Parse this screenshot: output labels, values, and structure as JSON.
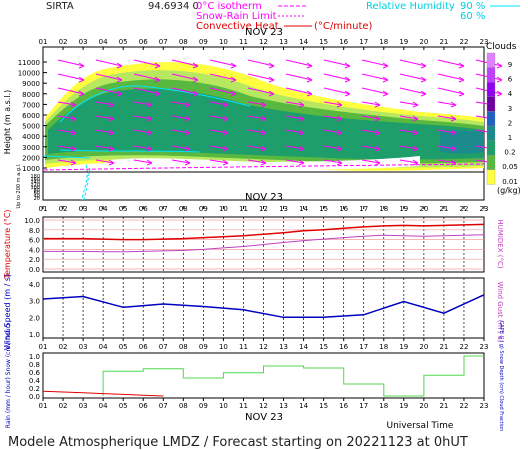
{
  "header": {
    "site": "SIRTA",
    "coord_line": "94.6934 0",
    "legend": {
      "isotherm": "0°C isotherm",
      "snow_rain": "Snow-Rain Limit",
      "convective": "Convective Heat.",
      "convective_unit": "(°C/minute)",
      "rh_label": "Relative Humidity",
      "rh_90": "90 %",
      "rh_60": "60 %"
    }
  },
  "hours": [
    "01",
    "02",
    "03",
    "04",
    "05",
    "06",
    "07",
    "08",
    "09",
    "10",
    "11",
    "12",
    "13",
    "14",
    "15",
    "16",
    "17",
    "18",
    "19",
    "20",
    "21",
    "22",
    "23"
  ],
  "date_label": "NOV 23",
  "footer": {
    "universal_time": "Universal Time",
    "model_line": "Modele Atmospherique LMDZ / Forecast starting on 20221123 at 0hUT"
  },
  "colors": {
    "magenta": "#ff00ff",
    "cyan": "#00e5ff",
    "red": "#e00000",
    "blue": "#0000c0",
    "green": "#50d850",
    "violet": "#c040c0",
    "cloud_001": "#ffff40",
    "cloud_005": "#b8e860",
    "cloud_02": "#58b840",
    "cloud_1": "#1e9e6a",
    "cloud_2": "#1a8a8c"
  },
  "chart_data": [
    {
      "type": "heatmap",
      "name": "clouds",
      "ylabel": "Height (m a.s.l.)",
      "ylabel_low": "Up to 200 m a.g.l.",
      "yticks_upper": [
        "11000",
        "10000",
        "9000",
        "8000",
        "7000",
        "6000",
        "5000",
        "4000",
        "3000",
        "2000",
        "1000"
      ],
      "yticks_lower": [
        "180",
        "160",
        "140",
        "120",
        "100",
        "80",
        "60",
        "40",
        "20"
      ],
      "legend": {
        "title": "Clouds",
        "unit": "(g/kg)",
        "levels": [
          "9",
          "6",
          "4",
          "3",
          "2",
          "1",
          "0.2",
          "0.05",
          "0.01"
        ],
        "colors": [
          "#e080ff",
          "#c040ff",
          "#9000f0",
          "#7000a0",
          "#2060c0",
          "#1a8a8c",
          "#1e9e6a",
          "#58b840",
          "#ffff40"
        ]
      }
    },
    {
      "type": "line",
      "name": "temperature",
      "ylabel": "Temperature (°C)",
      "ylabel_right": "HUMIDEX (°C)",
      "yticks": [
        "10.0",
        "8.0",
        "6.0",
        "4.0",
        "2.0",
        "0.0"
      ],
      "ylim": [
        0,
        10
      ],
      "x": [
        1,
        2,
        3,
        4,
        5,
        6,
        7,
        8,
        9,
        10,
        11,
        12,
        13,
        14,
        15,
        16,
        17,
        18,
        19,
        20,
        21,
        22,
        23
      ],
      "series": [
        {
          "values": [
            6.2,
            6.2,
            6.2,
            6.1,
            6.0,
            6.0,
            6.1,
            6.2,
            6.4,
            6.6,
            6.8,
            7.1,
            7.4,
            7.8,
            8.0,
            8.3,
            8.6,
            8.8,
            8.9,
            8.8,
            8.9,
            9.0,
            9.1
          ]
        },
        {
          "values": [
            3.6,
            3.6,
            3.6,
            3.5,
            3.5,
            3.6,
            3.7,
            3.8,
            4.0,
            4.3,
            4.6,
            5.0,
            5.4,
            5.8,
            6.1,
            6.4,
            6.7,
            6.9,
            6.8,
            6.7,
            6.8,
            6.9,
            7.0
          ]
        }
      ]
    },
    {
      "type": "line",
      "name": "wind",
      "ylabel": "Wind Speed (m / s)",
      "ylabel_right": "Wind Gust (m / s)",
      "yticks": [
        "4.0",
        "3.0",
        "2.0",
        "1.0"
      ],
      "ylim": [
        1,
        4
      ],
      "x": [
        1,
        3,
        5,
        7,
        9,
        11,
        13,
        15,
        17,
        19,
        21,
        23
      ],
      "series": [
        {
          "values": [
            3.1,
            3.25,
            2.6,
            2.8,
            2.65,
            2.45,
            2.0,
            2.0,
            2.15,
            2.95,
            2.25,
            3.35
          ]
        }
      ]
    },
    {
      "type": "bar",
      "name": "precipitation",
      "ylabel": "Rain (mm / hour) Snow (cm / hour)",
      "ylabel_right": "CAPE (J / g) Snow Depth (cm) Cloud Fraction",
      "yticks": [
        "1.0",
        "0.8",
        "0.6",
        "0.4",
        "0.2",
        "0.0"
      ],
      "ylim": [
        0,
        1
      ],
      "cloud_fraction": {
        "x_start": [
          4,
          6,
          8,
          10,
          12,
          14,
          16,
          18,
          20,
          22
        ],
        "x_end": [
          6,
          8,
          10,
          12,
          14,
          16,
          18,
          20,
          22,
          23
        ],
        "values": [
          0.62,
          0.68,
          0.45,
          0.58,
          0.75,
          0.7,
          0.3,
          0.0,
          0.52,
          1.0
        ]
      },
      "rain": {
        "x": [
          1,
          2,
          3,
          4,
          5,
          6,
          7
        ],
        "values": [
          0.12,
          0.1,
          0.08,
          0.06,
          0.04,
          0.02,
          0.0
        ]
      }
    }
  ]
}
